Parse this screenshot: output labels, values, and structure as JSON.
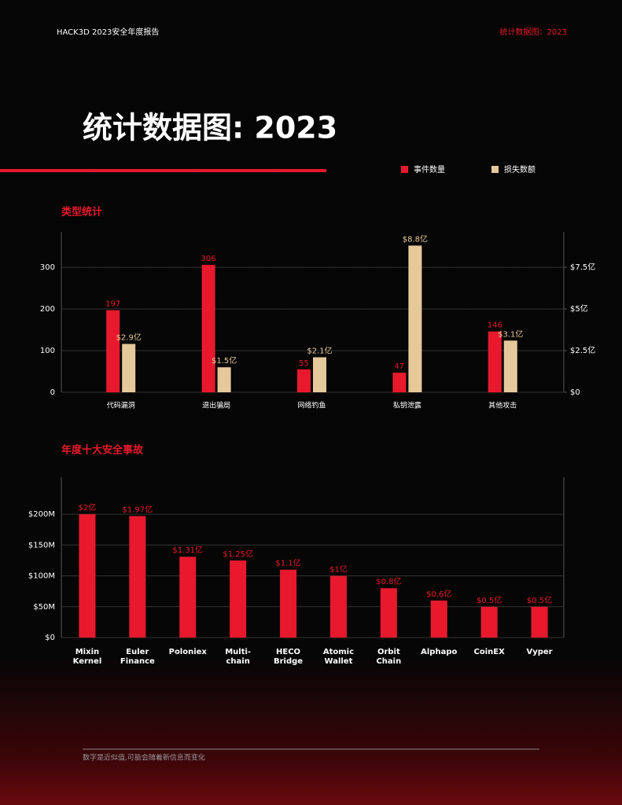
{
  "header": {
    "left": "HACK3D 2023安全年度报告",
    "right": "统计数据图：2023"
  },
  "title": "统计数据图: 2023",
  "footer": "数字是近似值,可能会随着新信息而变化",
  "chart_data": [
    {
      "type": "bar",
      "title": "类型统计",
      "categories": [
        "代码漏洞",
        "退出骗局",
        "网络钓鱼",
        "私钥泄露",
        "其他攻击"
      ],
      "series": [
        {
          "name": "事件数量",
          "color": "#e8192c",
          "values": [
            197,
            306,
            55,
            47,
            146
          ]
        },
        {
          "name": "损失数额",
          "color": "#e6c99a",
          "axis": "y2",
          "values": [
            2.9,
            1.5,
            2.1,
            8.8,
            3.1
          ],
          "value_labels": [
            "$2.9亿",
            "$1.5亿",
            "$2.1亿",
            "$8.8亿",
            "$3.1亿"
          ]
        }
      ],
      "ylim": [
        0,
        385
      ],
      "yticks": [
        0,
        100,
        200,
        300
      ],
      "y2lim": [
        0,
        9.62
      ],
      "y2ticks": [
        {
          "value": 0,
          "label": "$0"
        },
        {
          "value": 2.5,
          "label": "$2.5亿"
        },
        {
          "value": 5,
          "label": "$5亿"
        },
        {
          "value": 7.5,
          "label": "$7.5亿"
        }
      ],
      "grid": true,
      "legend": "top-right"
    },
    {
      "type": "bar",
      "title": "年度十大安全事故",
      "categories": [
        "Mixin Kernel",
        "Euler Finance",
        "Poloniex",
        "Multi-chain",
        "HECO Bridge",
        "Atomic Wallet",
        "Orbit Chain",
        "Alphapo",
        "CoinEX",
        "Vyper"
      ],
      "values": [
        200,
        197,
        131,
        125,
        110,
        100,
        80,
        60,
        50,
        50
      ],
      "value_labels": [
        "$2亿",
        "$1.97亿",
        "$1.31亿",
        "$1.25亿",
        "$1.1亿",
        "$1亿",
        "$0.8亿",
        "$0.6亿",
        "$0.5亿",
        "$0.5亿"
      ],
      "color": "#e8192c",
      "ylim": [
        0,
        260
      ],
      "yticks": [
        {
          "value": 0,
          "label": "$0"
        },
        {
          "value": 50,
          "label": "$50M"
        },
        {
          "value": 100,
          "label": "$100M"
        },
        {
          "value": 150,
          "label": "$150M"
        },
        {
          "value": 200,
          "label": "$200M"
        }
      ],
      "grid": true
    }
  ]
}
